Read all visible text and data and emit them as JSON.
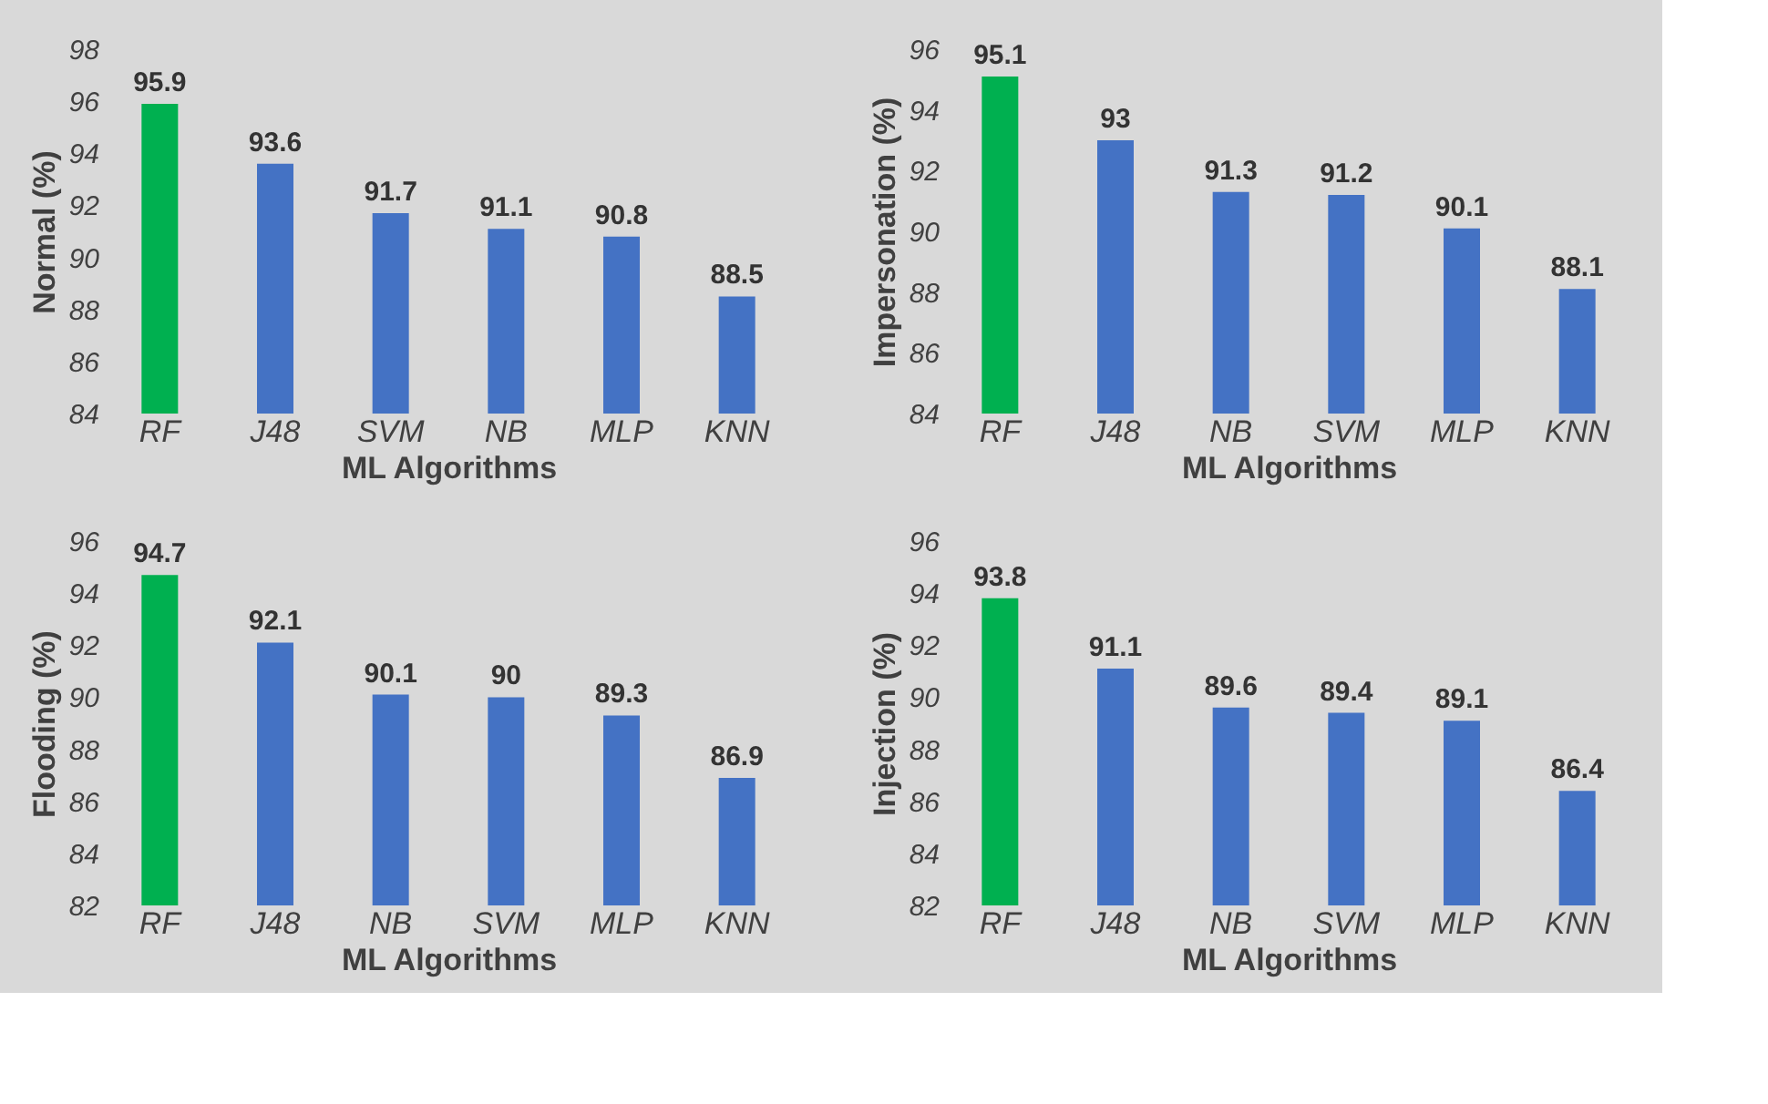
{
  "chart_data": [
    {
      "type": "bar",
      "xlabel": "ML Algorithms",
      "ylabel": "Normal (%)",
      "categories": [
        "RF",
        "J48",
        "SVM",
        "NB",
        "MLP",
        "KNN"
      ],
      "values": [
        95.9,
        93.6,
        91.7,
        91.1,
        90.8,
        88.5
      ],
      "colors": [
        "#00b050",
        "#4472c4",
        "#4472c4",
        "#4472c4",
        "#4472c4",
        "#4472c4"
      ],
      "ylim": [
        84,
        98
      ],
      "yticks": [
        84,
        86,
        88,
        90,
        92,
        94,
        96,
        98
      ],
      "data_labels": true
    },
    {
      "type": "bar",
      "xlabel": "ML Algorithms",
      "ylabel": "Impersonation (%)",
      "categories": [
        "RF",
        "J48",
        "NB",
        "SVM",
        "MLP",
        "KNN"
      ],
      "values": [
        95.1,
        93,
        91.3,
        91.2,
        90.1,
        88.1
      ],
      "colors": [
        "#00b050",
        "#4472c4",
        "#4472c4",
        "#4472c4",
        "#4472c4",
        "#4472c4"
      ],
      "ylim": [
        84,
        96
      ],
      "yticks": [
        84,
        86,
        88,
        90,
        92,
        94,
        96
      ],
      "data_labels": true
    },
    {
      "type": "bar",
      "xlabel": "ML Algorithms",
      "ylabel": "Flooding (%)",
      "categories": [
        "RF",
        "J48",
        "NB",
        "SVM",
        "MLP",
        "KNN"
      ],
      "values": [
        94.7,
        92.1,
        90.1,
        90,
        89.3,
        86.9
      ],
      "colors": [
        "#00b050",
        "#4472c4",
        "#4472c4",
        "#4472c4",
        "#4472c4",
        "#4472c4"
      ],
      "ylim": [
        82,
        96
      ],
      "yticks": [
        82,
        84,
        86,
        88,
        90,
        92,
        94,
        96
      ],
      "data_labels": true
    },
    {
      "type": "bar",
      "xlabel": "ML Algorithms",
      "ylabel": "Injection (%)",
      "categories": [
        "RF",
        "J48",
        "NB",
        "SVM",
        "MLP",
        "KNN"
      ],
      "values": [
        93.8,
        91.1,
        89.6,
        89.4,
        89.1,
        86.4
      ],
      "colors": [
        "#00b050",
        "#4472c4",
        "#4472c4",
        "#4472c4",
        "#4472c4",
        "#4472c4"
      ],
      "ylim": [
        82,
        96
      ],
      "yticks": [
        82,
        84,
        86,
        88,
        90,
        92,
        94,
        96
      ],
      "data_labels": true
    }
  ]
}
